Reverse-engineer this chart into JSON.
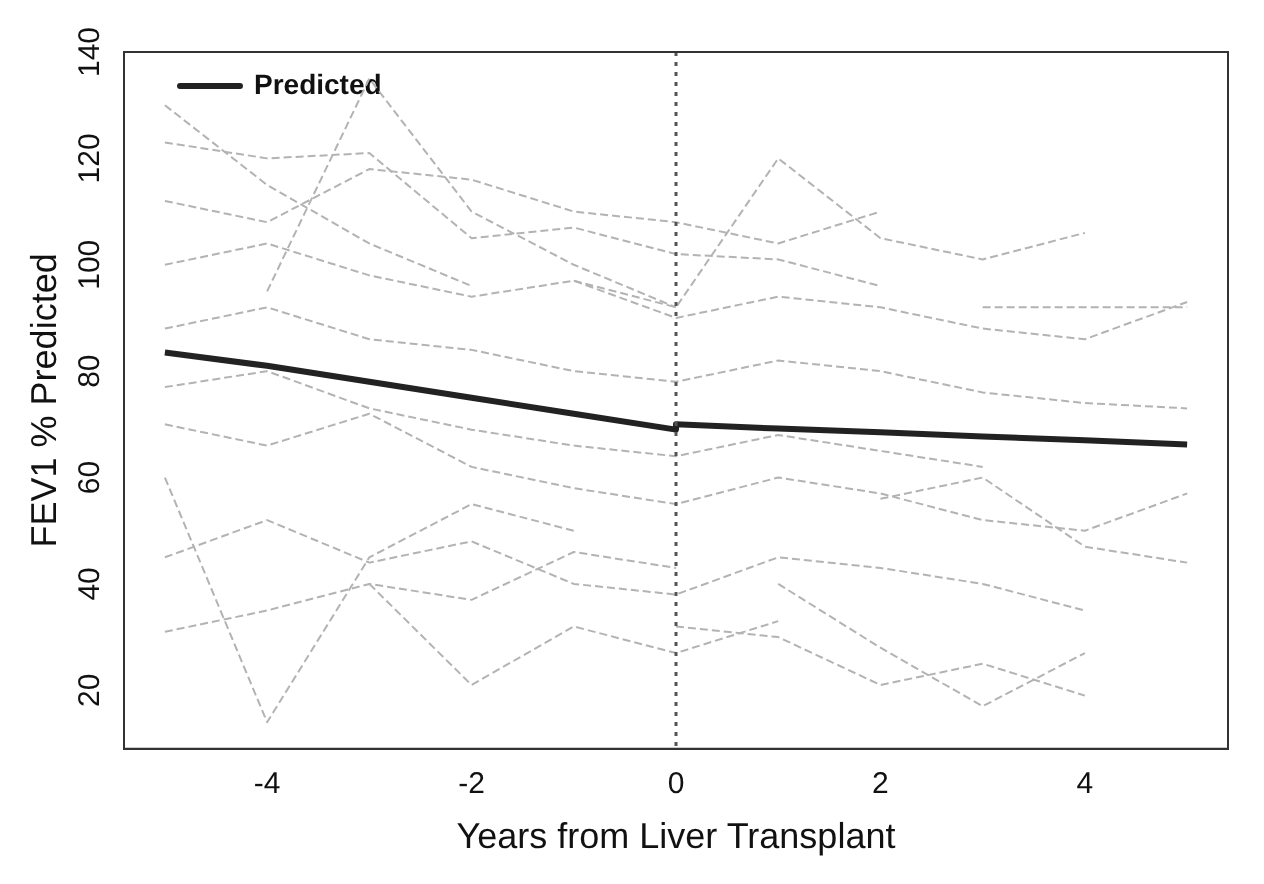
{
  "chart_data": {
    "type": "line",
    "xlabel": "Years from Liver Transplant",
    "ylabel": "FEV1 % Predicted",
    "xlim": [
      -5.4,
      5.4
    ],
    "xticks": [
      -4,
      -2,
      0,
      2,
      4
    ],
    "ylim": [
      9,
      140
    ],
    "yticks": [
      20,
      40,
      60,
      80,
      100,
      120,
      140
    ],
    "grid": false,
    "legend": "top left",
    "marker": "none",
    "ref_lines": [
      {
        "axis": "x",
        "value": 0,
        "color": "#555555",
        "line_style": "dotted"
      }
    ],
    "series": [
      {
        "name": "Predicted",
        "color": "#222222",
        "line_style": "solid",
        "x": [
          -5,
          -4,
          -3,
          -2,
          -1,
          0,
          0,
          1,
          2,
          3,
          4,
          5
        ],
        "values": [
          83.5,
          81,
          78,
          75,
          72,
          69,
          70,
          69.2,
          68.5,
          67.7,
          67,
          66.2
        ]
      },
      {
        "color": "#b3b3b3",
        "line_style": "dashed",
        "x": [
          -5,
          -4,
          -3,
          -2
        ],
        "values": [
          130,
          115,
          104,
          96
        ]
      },
      {
        "color": "#b3b3b3",
        "line_style": "dashed",
        "x": [
          -5,
          -4,
          -3,
          -2,
          -1
        ],
        "values": [
          60,
          14,
          45,
          55,
          50
        ]
      },
      {
        "color": "#b3b3b3",
        "line_style": "dashed",
        "x": [
          -4,
          -3,
          -2,
          -1,
          0
        ],
        "values": [
          95,
          135,
          110,
          100,
          92
        ]
      },
      {
        "color": "#b3b3b3",
        "line_style": "dashed",
        "x": [
          -5,
          -4,
          -3,
          -2,
          -1,
          0,
          1,
          2
        ],
        "values": [
          123,
          120,
          121,
          105,
          107,
          102,
          101,
          96
        ]
      },
      {
        "color": "#b3b3b3",
        "line_style": "dashed",
        "x": [
          -5,
          -4,
          -3,
          -2,
          -1,
          0
        ],
        "values": [
          31,
          35,
          40,
          37,
          46,
          43
        ]
      },
      {
        "color": "#b3b3b3",
        "line_style": "dashed",
        "x": [
          -3,
          -2,
          -1,
          0,
          1
        ],
        "values": [
          40,
          21,
          32,
          27,
          33
        ]
      },
      {
        "color": "#b3b3b3",
        "line_style": "dashed",
        "x": [
          -1,
          0,
          1,
          2,
          3,
          4
        ],
        "values": [
          97,
          92,
          120,
          105,
          101,
          106
        ]
      },
      {
        "color": "#b3b3b3",
        "line_style": "dashed",
        "x": [
          0,
          1,
          2,
          3,
          4
        ],
        "values": [
          32,
          30,
          21,
          25,
          19
        ]
      },
      {
        "color": "#b3b3b3",
        "line_style": "dashed",
        "x": [
          1,
          2,
          3,
          4
        ],
        "values": [
          40,
          28,
          17,
          27
        ]
      },
      {
        "color": "#b3b3b3",
        "line_style": "dashed",
        "x": [
          -5,
          -4,
          -3,
          -2,
          -1,
          0,
          1,
          2,
          3,
          4,
          5
        ],
        "values": [
          88,
          92,
          86,
          84,
          80,
          78,
          82,
          80,
          76,
          74,
          73
        ]
      },
      {
        "color": "#b3b3b3",
        "line_style": "dashed",
        "x": [
          -5,
          -4,
          -3,
          -2,
          -1,
          0,
          1,
          2,
          3,
          4,
          5
        ],
        "values": [
          70,
          66,
          72,
          62,
          58,
          55,
          60,
          57,
          52,
          50,
          57
        ]
      },
      {
        "color": "#b3b3b3",
        "line_style": "dashed",
        "x": [
          -5,
          -4,
          -3,
          -2,
          -1,
          0,
          1,
          2,
          3,
          4
        ],
        "values": [
          45,
          52,
          44,
          48,
          40,
          38,
          45,
          43,
          40,
          35
        ]
      },
      {
        "color": "#b3b3b3",
        "line_style": "dashed",
        "x": [
          -5,
          -4,
          -3,
          -2,
          -1,
          0,
          1,
          2,
          3,
          4,
          5
        ],
        "values": [
          100,
          104,
          98,
          94,
          97,
          90,
          94,
          92,
          88,
          86,
          93
        ]
      },
      {
        "color": "#b3b3b3",
        "line_style": "dashed",
        "x": [
          2,
          3,
          4,
          5
        ],
        "values": [
          56,
          60,
          47,
          44
        ]
      },
      {
        "color": "#b3b3b3",
        "line_style": "dashed",
        "x": [
          3,
          4,
          5
        ],
        "values": [
          92,
          92,
          92
        ]
      },
      {
        "color": "#b3b3b3",
        "line_style": "dashed",
        "x": [
          -5,
          -4,
          -3,
          -2,
          -1,
          0,
          1,
          2,
          3
        ],
        "values": [
          77,
          80,
          73,
          69,
          66,
          64,
          68,
          65,
          62
        ]
      },
      {
        "color": "#b3b3b3",
        "line_style": "dashed",
        "x": [
          -5,
          -4,
          -3,
          -2,
          -1,
          0,
          1,
          2
        ],
        "values": [
          112,
          108,
          118,
          116,
          110,
          108,
          104,
          110
        ]
      }
    ]
  }
}
